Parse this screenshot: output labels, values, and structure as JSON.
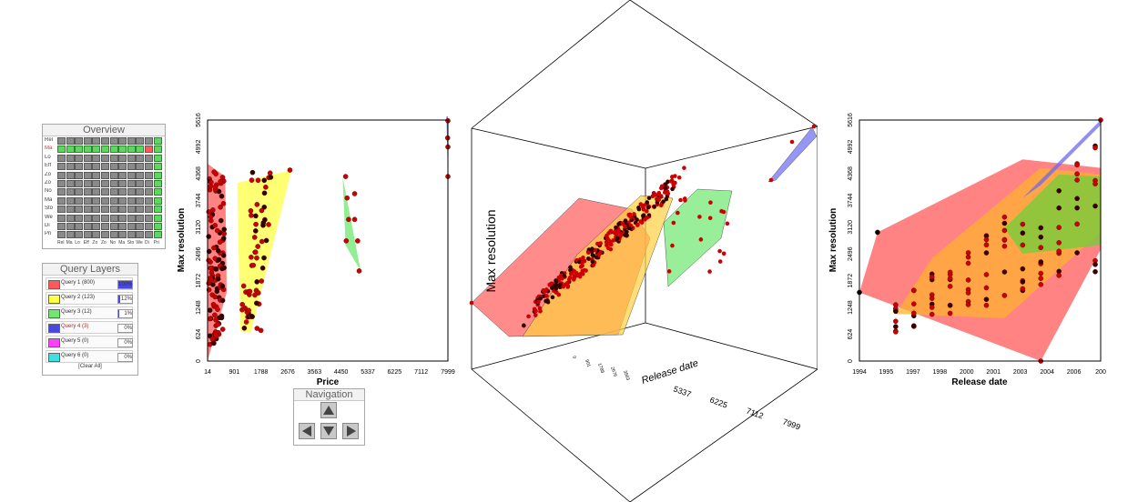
{
  "overview": {
    "title": "Overview",
    "rows": [
      "Rel",
      "Ma",
      "Lo",
      "Eff",
      "Zo",
      "Zo",
      "No",
      "Ma",
      "Sto",
      "We",
      "Di",
      "Pri"
    ],
    "columns": [
      "Rel",
      "Ma",
      "Lo",
      "Eff",
      "Zo",
      "Zo",
      "No",
      "Ma",
      "Sto",
      "We",
      "Di",
      "Pri"
    ],
    "highlight_row": 1
  },
  "query_layers": {
    "title": "Query Layers",
    "items": [
      {
        "label": "Query 1 (800)",
        "color": "#ff5a5a",
        "pct": "100%",
        "fill": 1.0
      },
      {
        "label": "Query 2 (123)",
        "color": "#ffff44",
        "pct": "12%",
        "fill": 0.12
      },
      {
        "label": "Query 3 (12)",
        "color": "#6ee86e",
        "pct": "1%",
        "fill": 0.01
      },
      {
        "label": "Query 4 (3)",
        "color": "#4848e0",
        "pct": "0%",
        "fill": 0.0
      },
      {
        "label": "Query 5 (0)",
        "color": "#ff40ff",
        "pct": "0%",
        "fill": 0.0
      },
      {
        "label": "Query 6 (0)",
        "color": "#40e0e0",
        "pct": "0%",
        "fill": 0.0
      }
    ],
    "clear_label": "[Clear All]"
  },
  "navigation": {
    "title": "Navigation",
    "up_icon": "arrow-up-icon",
    "down_icon": "arrow-down-icon",
    "left_icon": "arrow-left-icon",
    "right_icon": "arrow-right-icon"
  },
  "chart_data": [
    {
      "type": "scatter",
      "xlabel": "Price",
      "ylabel": "Max resolution",
      "xticks": [
        "14",
        "901",
        "1788",
        "2676",
        "3563",
        "4450",
        "5337",
        "6225",
        "7112",
        "7999"
      ],
      "yticks": [
        "0",
        "624",
        "1248",
        "1872",
        "2496",
        "3120",
        "3744",
        "4368",
        "4992",
        "5616"
      ],
      "xlim": [
        14,
        7999
      ],
      "ylim": [
        0,
        5616
      ],
      "hulls": [
        {
          "name": "",
          "color": "#ff5a5a",
          "points": [
            [
              14,
              4600
            ],
            [
              600,
              4300
            ],
            [
              650,
              1600
            ],
            [
              14,
              0
            ]
          ]
        },
        {
          "name": "",
          "color": "#ffff44",
          "points": [
            [
              1000,
              4150
            ],
            [
              2800,
              4450
            ],
            [
              1450,
              650
            ],
            [
              1100,
              700
            ]
          ]
        },
        {
          "name": "",
          "color": "#6ee86e",
          "points": [
            [
              4500,
              4300
            ],
            [
              5100,
              2100
            ],
            [
              4600,
              2700
            ]
          ]
        },
        {
          "name": "",
          "color": "#4848e0",
          "points": [
            [
              7950,
              5700
            ],
            [
              7999,
              5700
            ],
            [
              7999,
              4300
            ]
          ]
        }
      ]
    },
    {
      "type": "scatter",
      "xlabel": "Release date",
      "ylabel": "Max resolution",
      "xticks": [
        "1994",
        "1995",
        "1997",
        "1998",
        "2000",
        "2001",
        "2003",
        "2004",
        "2006",
        "200"
      ],
      "yticks": [
        "0",
        "624",
        "1248",
        "1872",
        "2496",
        "3120",
        "3744",
        "4368",
        "4992",
        "5616"
      ],
      "xlim": [
        1994,
        2007.3
      ],
      "ylim": [
        0,
        5616
      ],
      "hulls": [
        {
          "name": "",
          "color": "#ff5a5a",
          "points": [
            [
              1994,
              1600
            ],
            [
              1995,
              3000
            ],
            [
              2003,
              4700
            ],
            [
              2007.3,
              4500
            ],
            [
              2007.3,
              2600
            ],
            [
              2004,
              0
            ]
          ]
        },
        {
          "name": "",
          "color": "#ffb030",
          "points": [
            [
              1996,
              1100
            ],
            [
              1998,
              2400
            ],
            [
              2004,
              4500
            ],
            [
              2007.3,
              4350
            ],
            [
              2007.3,
              3000
            ],
            [
              2002,
              1000
            ]
          ]
        },
        {
          "name": "",
          "color": "#6ecf3a",
          "points": [
            [
              2002,
              3100
            ],
            [
              2005,
              4350
            ],
            [
              2007.3,
              4300
            ],
            [
              2007.3,
              2700
            ],
            [
              2003,
              2500
            ]
          ]
        },
        {
          "name": "",
          "color": "#6a6af0",
          "points": [
            [
              2003,
              3800
            ],
            [
              2007.3,
              5616
            ],
            [
              2007.3,
              5500
            ],
            [
              2004,
              4100
            ]
          ]
        }
      ]
    },
    {
      "type": "scatter",
      "subtype": "3d",
      "ylabel": "Max resolution",
      "zlabel": "Release date",
      "xticks": [
        "5337",
        "6225",
        "7112",
        "7999"
      ],
      "inner_ticks": [
        "0",
        "901",
        "1788",
        "2676",
        "3563"
      ]
    }
  ]
}
